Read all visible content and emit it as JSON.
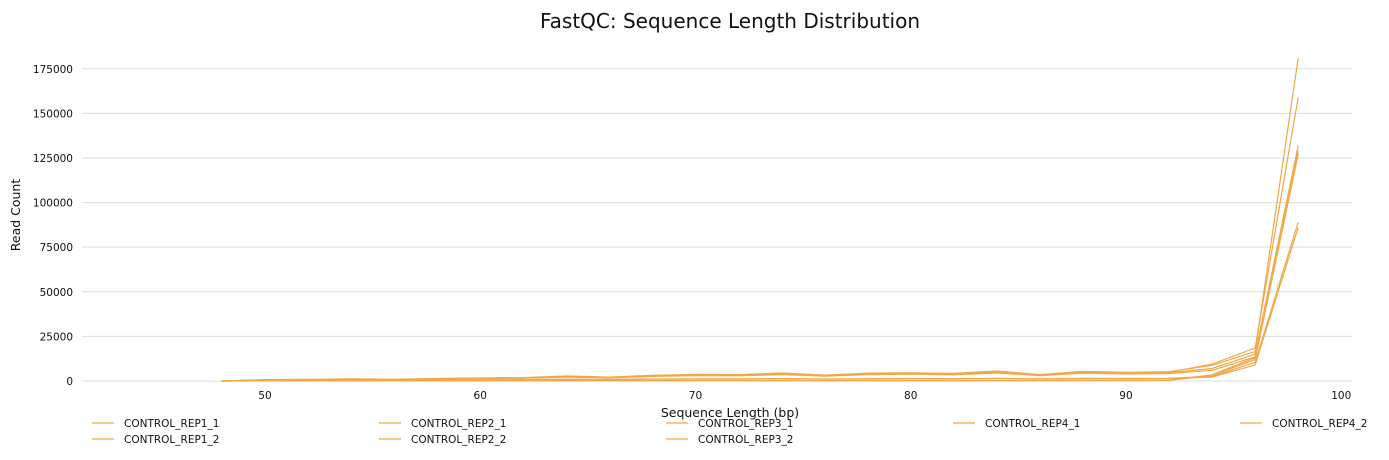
{
  "chart_data": {
    "type": "line",
    "title": "FastQC: Sequence Length Distribution",
    "xlabel": "Sequence Length (bp)",
    "ylabel": "Read Count",
    "xlim": [
      41.5,
      100.5
    ],
    "ylim": [
      0,
      190000
    ],
    "xticks": [
      50,
      60,
      70,
      80,
      90,
      100
    ],
    "yticks": [
      0,
      25000,
      50000,
      75000,
      100000,
      125000,
      150000,
      175000
    ],
    "grid": "horizontal",
    "legend_position": "bottom",
    "line_color": "#f0a848",
    "series": [
      {
        "name": "CONTROL_REP1_1",
        "x": [
          48,
          50,
          52,
          54,
          56,
          58,
          60,
          62,
          64,
          66,
          68,
          70,
          72,
          74,
          76,
          78,
          80,
          82,
          84,
          86,
          88,
          90,
          92,
          94,
          96,
          98
        ],
        "y": [
          0,
          800,
          900,
          1200,
          1000,
          1400,
          1700,
          1900,
          2800,
          2200,
          3200,
          3700,
          3600,
          4500,
          3300,
          4400,
          4600,
          4300,
          5600,
          3600,
          5400,
          4900,
          5200,
          8800,
          16500,
          181000
        ]
      },
      {
        "name": "CONTROL_REP1_2",
        "x": [
          48,
          50,
          52,
          54,
          56,
          58,
          60,
          62,
          64,
          66,
          68,
          70,
          72,
          74,
          76,
          78,
          80,
          82,
          84,
          86,
          88,
          90,
          92,
          94,
          96,
          98
        ],
        "y": [
          0,
          700,
          800,
          1100,
          900,
          1300,
          1600,
          1800,
          2600,
          2000,
          3000,
          3500,
          3400,
          4200,
          3100,
          4100,
          4300,
          4000,
          5200,
          3400,
          5000,
          4600,
          4900,
          9500,
          18500,
          159000
        ]
      },
      {
        "name": "CONTROL_REP2_1",
        "x": [
          48,
          50,
          52,
          54,
          56,
          58,
          60,
          62,
          64,
          66,
          68,
          70,
          72,
          74,
          76,
          78,
          80,
          82,
          84,
          86,
          88,
          90,
          92,
          94,
          96,
          98
        ],
        "y": [
          0,
          600,
          800,
          1000,
          900,
          1200,
          1500,
          1700,
          2400,
          1900,
          2800,
          3300,
          3200,
          3900,
          2900,
          3900,
          4100,
          3800,
          4900,
          3200,
          4800,
          4400,
          4600,
          7000,
          15000,
          132000
        ]
      },
      {
        "name": "CONTROL_REP2_2",
        "x": [
          48,
          50,
          52,
          54,
          56,
          58,
          60,
          62,
          64,
          66,
          68,
          70,
          72,
          74,
          76,
          78,
          80,
          82,
          84,
          86,
          88,
          90,
          92,
          94,
          96,
          98
        ],
        "y": [
          0,
          500,
          700,
          900,
          800,
          1100,
          1400,
          1600,
          2200,
          1800,
          2600,
          3000,
          2900,
          3600,
          2700,
          3600,
          3800,
          3500,
          4500,
          3000,
          4400,
          4000,
          4200,
          6000,
          13500,
          128000
        ]
      },
      {
        "name": "CONTROL_REP3_1",
        "x": [
          48,
          50,
          52,
          54,
          56,
          58,
          60,
          62,
          64,
          66,
          68,
          70,
          72,
          74,
          76,
          78,
          80,
          82,
          84,
          86,
          88,
          90,
          92,
          94,
          96,
          98
        ],
        "y": [
          0,
          300,
          400,
          500,
          500,
          600,
          700,
          800,
          1000,
          900,
          1100,
          1200,
          1200,
          1400,
          1100,
          1300,
          1400,
          1300,
          1500,
          1200,
          1500,
          1400,
          1500,
          2500,
          10500,
          89000
        ]
      },
      {
        "name": "CONTROL_REP3_2",
        "x": [
          48,
          50,
          52,
          54,
          56,
          58,
          60,
          62,
          64,
          66,
          68,
          70,
          72,
          74,
          76,
          78,
          80,
          82,
          84,
          86,
          88,
          90,
          92,
          94,
          96,
          98
        ],
        "y": [
          0,
          200,
          300,
          400,
          400,
          500,
          600,
          700,
          900,
          800,
          1000,
          1100,
          1100,
          1300,
          1000,
          1200,
          1300,
          1200,
          1400,
          1100,
          1400,
          1300,
          1400,
          2200,
          9000,
          86000
        ]
      },
      {
        "name": "CONTROL_REP4_1",
        "x": [
          48,
          50,
          52,
          54,
          56,
          58,
          60,
          62,
          64,
          66,
          68,
          70,
          72,
          74,
          76,
          78,
          80,
          82,
          84,
          86,
          88,
          90,
          92,
          94,
          96,
          98
        ],
        "y": [
          0,
          100,
          100,
          100,
          100,
          200,
          200,
          200,
          200,
          200,
          300,
          300,
          300,
          300,
          200,
          300,
          300,
          200,
          300,
          300,
          400,
          400,
          500,
          3500,
          13000,
          129000
        ]
      },
      {
        "name": "CONTROL_REP4_2",
        "x": [
          48,
          50,
          52,
          54,
          56,
          58,
          60,
          62,
          64,
          66,
          68,
          70,
          72,
          74,
          76,
          78,
          80,
          82,
          84,
          86,
          88,
          90,
          92,
          94,
          96,
          98
        ],
        "y": [
          0,
          100,
          100,
          100,
          100,
          100,
          200,
          200,
          200,
          200,
          200,
          200,
          200,
          200,
          200,
          200,
          200,
          200,
          200,
          200,
          300,
          300,
          400,
          3000,
          12000,
          127000
        ]
      }
    ]
  }
}
